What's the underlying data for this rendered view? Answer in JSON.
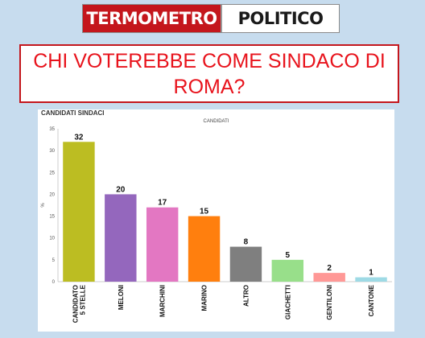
{
  "logo": {
    "part1": "TERMOMETRO",
    "part2": "POLITICO"
  },
  "headline": "CHI VOTEREBBE COME SINDACO DI ROMA?",
  "chart_data": {
    "type": "bar",
    "title": "CANDIDATI SINDACI",
    "subtitle": "CANDIDATI",
    "ylabel": "%",
    "xlabel": "",
    "ylim": [
      0,
      35
    ],
    "yticks": [
      0,
      5,
      10,
      15,
      20,
      25,
      30,
      35
    ],
    "categories": [
      "CANDIDATO 5 STELLE",
      "MELONI",
      "MARCHINI",
      "MARINO",
      "ALTRO",
      "GIACHETTI",
      "GENTILONI",
      "CANTONE"
    ],
    "category_lines": [
      [
        "CANDIDATO",
        "5 STELLE"
      ],
      [
        "MELONI"
      ],
      [
        "MARCHINI"
      ],
      [
        "MARINO"
      ],
      [
        "ALTRO"
      ],
      [
        "GIACHETTI"
      ],
      [
        "GENTILONI"
      ],
      [
        "CANTONE"
      ]
    ],
    "values": [
      32,
      20,
      17,
      15,
      8,
      5,
      2,
      1
    ],
    "colors": [
      "#bcbd22",
      "#9467bd",
      "#e377c2",
      "#ff7f0e",
      "#7f7f7f",
      "#98df8a",
      "#ff9896",
      "#9edae5"
    ],
    "grid": false,
    "legend": "none"
  }
}
